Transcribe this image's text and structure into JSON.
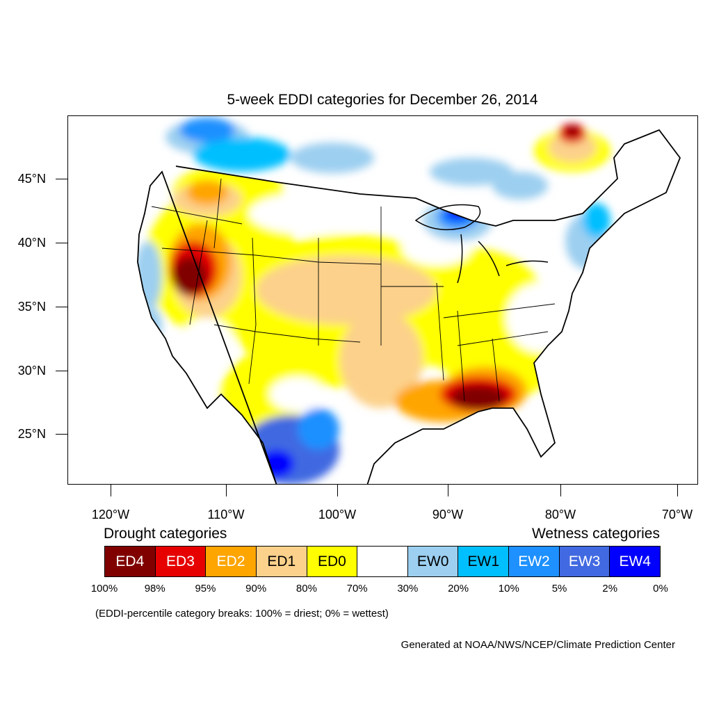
{
  "title": "5-week EDDI categories for December 26, 2014",
  "axes": {
    "lat_labels": [
      "45°N",
      "40°N",
      "35°N",
      "30°N",
      "25°N"
    ],
    "lon_labels": [
      "120°W",
      "110°W",
      "100°W",
      "90°W",
      "80°W",
      "70°W"
    ]
  },
  "legend": {
    "drought_heading": "Drought categories",
    "wetness_heading": "Wetness categories",
    "boxes": [
      {
        "label": "ED4",
        "color": "#800000",
        "text_color": "#ffffff"
      },
      {
        "label": "ED3",
        "color": "#e60000",
        "text_color": "#ffffff"
      },
      {
        "label": "ED2",
        "color": "#ffa500",
        "text_color": "#ffffff"
      },
      {
        "label": "ED1",
        "color": "#fcd18b",
        "text_color": "#000000"
      },
      {
        "label": "ED0",
        "color": "#ffff00",
        "text_color": "#000000"
      },
      {
        "label": "",
        "color": "#ffffff",
        "text_color": "#000000"
      },
      {
        "label": "EW0",
        "color": "#9ccff0",
        "text_color": "#000000"
      },
      {
        "label": "EW1",
        "color": "#00bfff",
        "text_color": "#000000"
      },
      {
        "label": "EW2",
        "color": "#1e90ff",
        "text_color": "#ffffff"
      },
      {
        "label": "EW3",
        "color": "#4169e1",
        "text_color": "#ffffff"
      },
      {
        "label": "EW4",
        "color": "#0000ff",
        "text_color": "#ffffff"
      }
    ],
    "percent_labels": [
      "100%",
      "98%",
      "95%",
      "90%",
      "80%",
      "70%",
      "30%",
      "20%",
      "10%",
      "5%",
      "2%",
      "0%"
    ]
  },
  "note": "(EDDI-percentile category breaks: 100% = driest; 0% = wettest)",
  "credit": "Generated at NOAA/NWS/NCEP/Climate Prediction Center"
}
